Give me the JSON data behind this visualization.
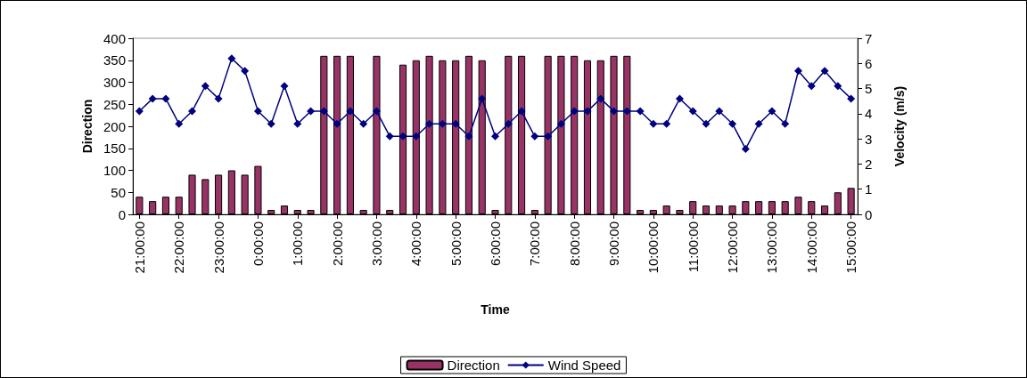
{
  "chart_data": {
    "type": "bar",
    "xlabel": "Time",
    "ylabel": "Direction",
    "y2label": "Velocity (m/s)",
    "categories": [
      "21:00:00",
      null,
      null,
      "22:00:00",
      null,
      null,
      "23:00:00",
      null,
      null,
      "0:00:00",
      null,
      null,
      "1:00:00",
      null,
      null,
      "2:00:00",
      null,
      null,
      "3:00:00",
      null,
      null,
      "4:00:00",
      null,
      null,
      "5:00:00",
      null,
      null,
      "6:00:00",
      null,
      null,
      "7:00:00",
      null,
      null,
      "8:00:00",
      null,
      null,
      "9:00:00",
      null,
      null,
      "10:00:00",
      null,
      null,
      "11:00:00",
      null,
      null,
      "12:00:00",
      null,
      null,
      "13:00:00",
      null,
      null,
      "14:00:00",
      null,
      null,
      "15:00:00"
    ],
    "series": [
      {
        "name": "Direction",
        "color": "#993366",
        "values": [
          40,
          30,
          40,
          40,
          90,
          80,
          90,
          100,
          90,
          110,
          10,
          20,
          10,
          10,
          360,
          360,
          360,
          10,
          360,
          10,
          340,
          350,
          360,
          350,
          350,
          360,
          350,
          10,
          360,
          360,
          10,
          360,
          360,
          360,
          350,
          350,
          360,
          360,
          10,
          10,
          20,
          10,
          30,
          20,
          20,
          20,
          30,
          30,
          30,
          30,
          40,
          30,
          20,
          50,
          60
        ]
      },
      {
        "name": "Wind Speed",
        "type": "line",
        "axis": "y2",
        "color": "#000080",
        "values": [
          4.1,
          4.6,
          4.6,
          3.6,
          4.1,
          5.1,
          4.6,
          6.2,
          5.7,
          4.1,
          3.6,
          5.1,
          3.6,
          4.1,
          4.1,
          3.6,
          4.1,
          3.6,
          4.1,
          3.1,
          3.1,
          3.1,
          3.6,
          3.6,
          3.6,
          3.1,
          4.6,
          3.1,
          3.6,
          4.1,
          3.1,
          3.1,
          3.6,
          4.1,
          4.1,
          4.6,
          4.1,
          4.1,
          4.1,
          3.6,
          3.6,
          4.6,
          4.1,
          3.6,
          4.1,
          3.6,
          2.6,
          3.6,
          4.1,
          3.6,
          5.7,
          5.1,
          5.7,
          5.1,
          4.6
        ]
      }
    ],
    "ylim": [
      0,
      400
    ],
    "yticks": [
      0,
      50,
      100,
      150,
      200,
      250,
      300,
      350,
      400
    ],
    "y2lim": [
      0,
      7
    ],
    "y2ticks": [
      0,
      1,
      2,
      3,
      4,
      5,
      6,
      7
    ],
    "grid": false,
    "legend": "bottom",
    "marker": "diamond",
    "line_style": "solid"
  }
}
